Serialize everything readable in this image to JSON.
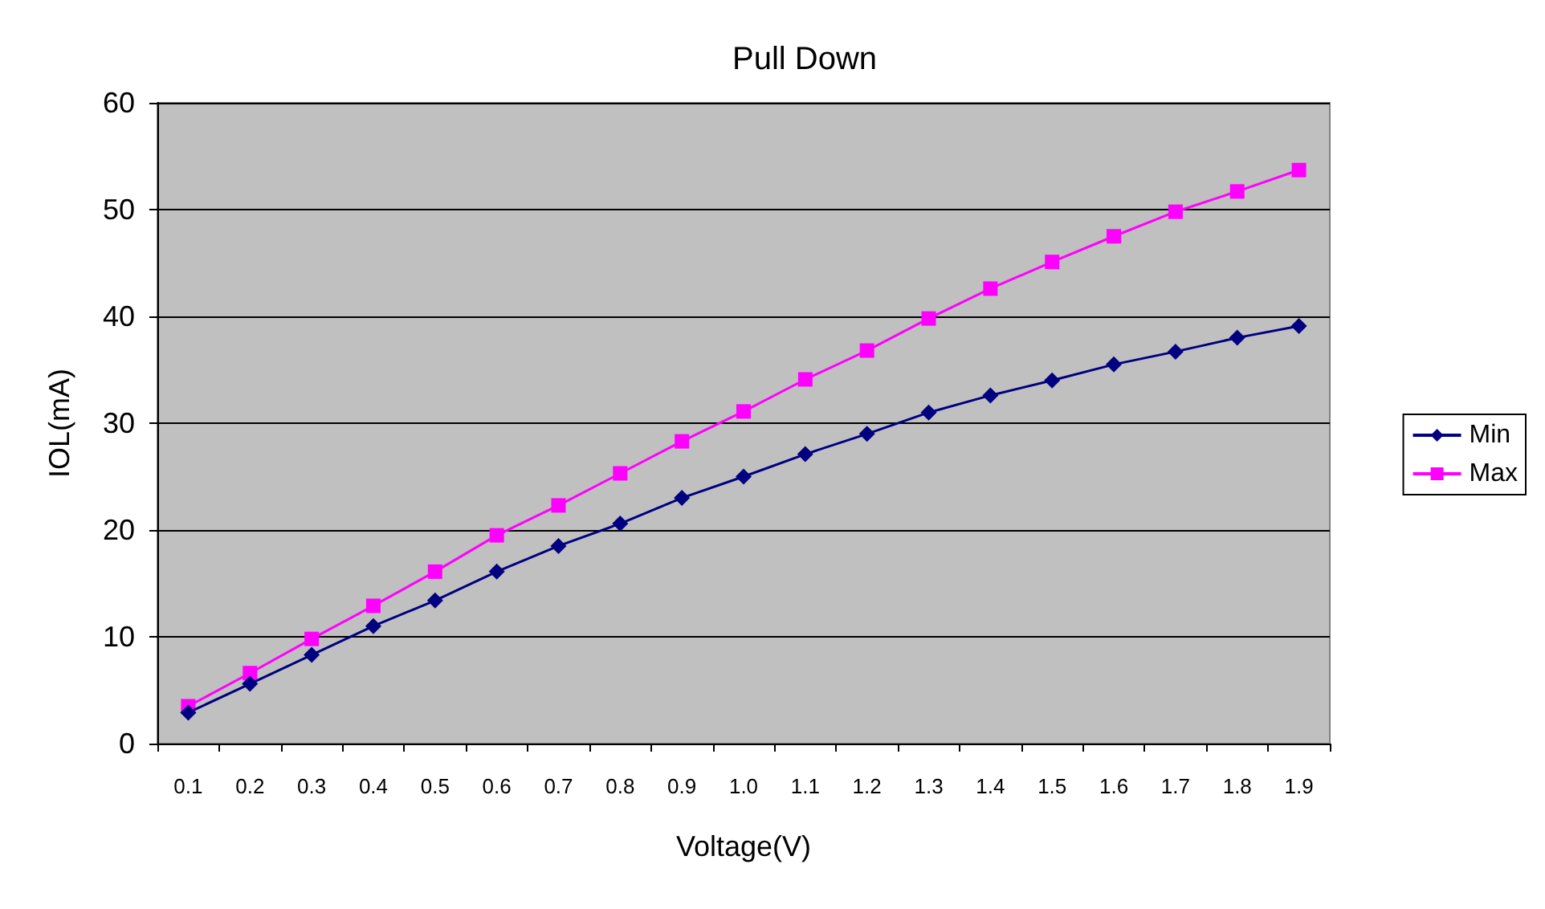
{
  "chart_data": {
    "type": "line",
    "title": "Pull Down",
    "xlabel": "Voltage(V)",
    "ylabel": "IOL(mA)",
    "categories": [
      "0.1",
      "0.2",
      "0.3",
      "0.4",
      "0.5",
      "0.6",
      "0.7",
      "0.8",
      "0.9",
      "1.0",
      "1.1",
      "1.2",
      "1.3",
      "1.4",
      "1.5",
      "1.6",
      "1.7",
      "1.8",
      "1.9"
    ],
    "series": [
      {
        "name": "Min",
        "color": "#000080",
        "marker": "diamond",
        "values": [
          2.9,
          5.6,
          8.3,
          11.0,
          13.4,
          16.1,
          18.5,
          20.6,
          23.0,
          25.0,
          27.1,
          29.0,
          31.0,
          32.6,
          34.0,
          35.5,
          36.7,
          38.0,
          39.1
        ]
      },
      {
        "name": "Max",
        "color": "#ff00ff",
        "marker": "square",
        "values": [
          3.5,
          6.6,
          9.8,
          12.9,
          16.1,
          19.5,
          22.3,
          25.3,
          28.3,
          31.1,
          34.1,
          36.8,
          39.8,
          42.6,
          45.1,
          47.5,
          49.8,
          51.7,
          53.7
        ]
      }
    ],
    "ylim": [
      0,
      60
    ],
    "yticks": [
      0,
      10,
      20,
      30,
      40,
      50,
      60
    ],
    "grid": "y",
    "legend": "right",
    "line_style": "solid"
  }
}
